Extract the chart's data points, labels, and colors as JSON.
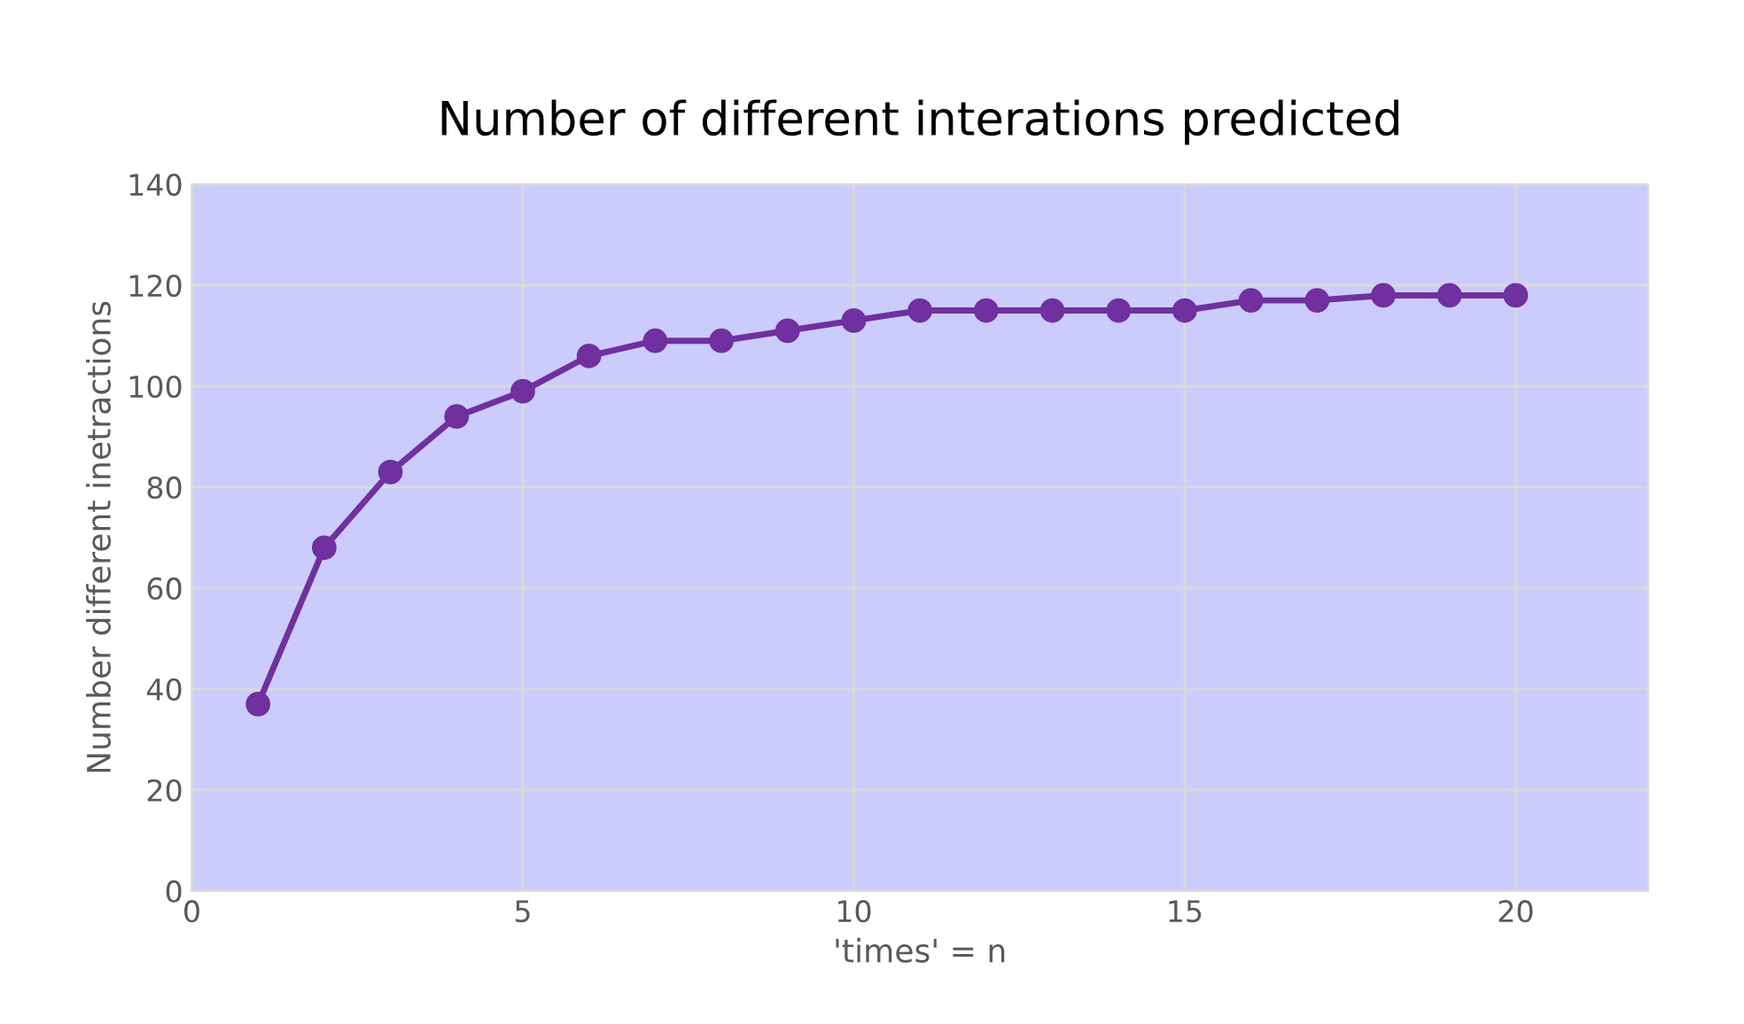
{
  "chart_data": {
    "type": "line",
    "title": "Number of different interations predicted",
    "xlabel": "'times' = n",
    "ylabel": "Number different inetractions",
    "x": [
      1,
      2,
      3,
      4,
      5,
      6,
      7,
      8,
      9,
      10,
      11,
      12,
      13,
      14,
      15,
      16,
      17,
      18,
      19,
      20
    ],
    "series": [
      {
        "color": "#7030a0",
        "values": [
          37,
          68,
          83,
          94,
          99,
          106,
          109,
          109,
          111,
          113,
          115,
          115,
          115,
          115,
          115,
          117,
          117,
          118,
          118,
          118
        ]
      }
    ],
    "xlim": [
      0,
      22
    ],
    "xticks": [
      0,
      5,
      10,
      15,
      20
    ],
    "ylim": [
      0,
      140
    ],
    "yticks": [
      0,
      20,
      40,
      60,
      80,
      100,
      120,
      140
    ],
    "grid": true,
    "marker": "circle",
    "line_style": "solid",
    "legend": false
  }
}
